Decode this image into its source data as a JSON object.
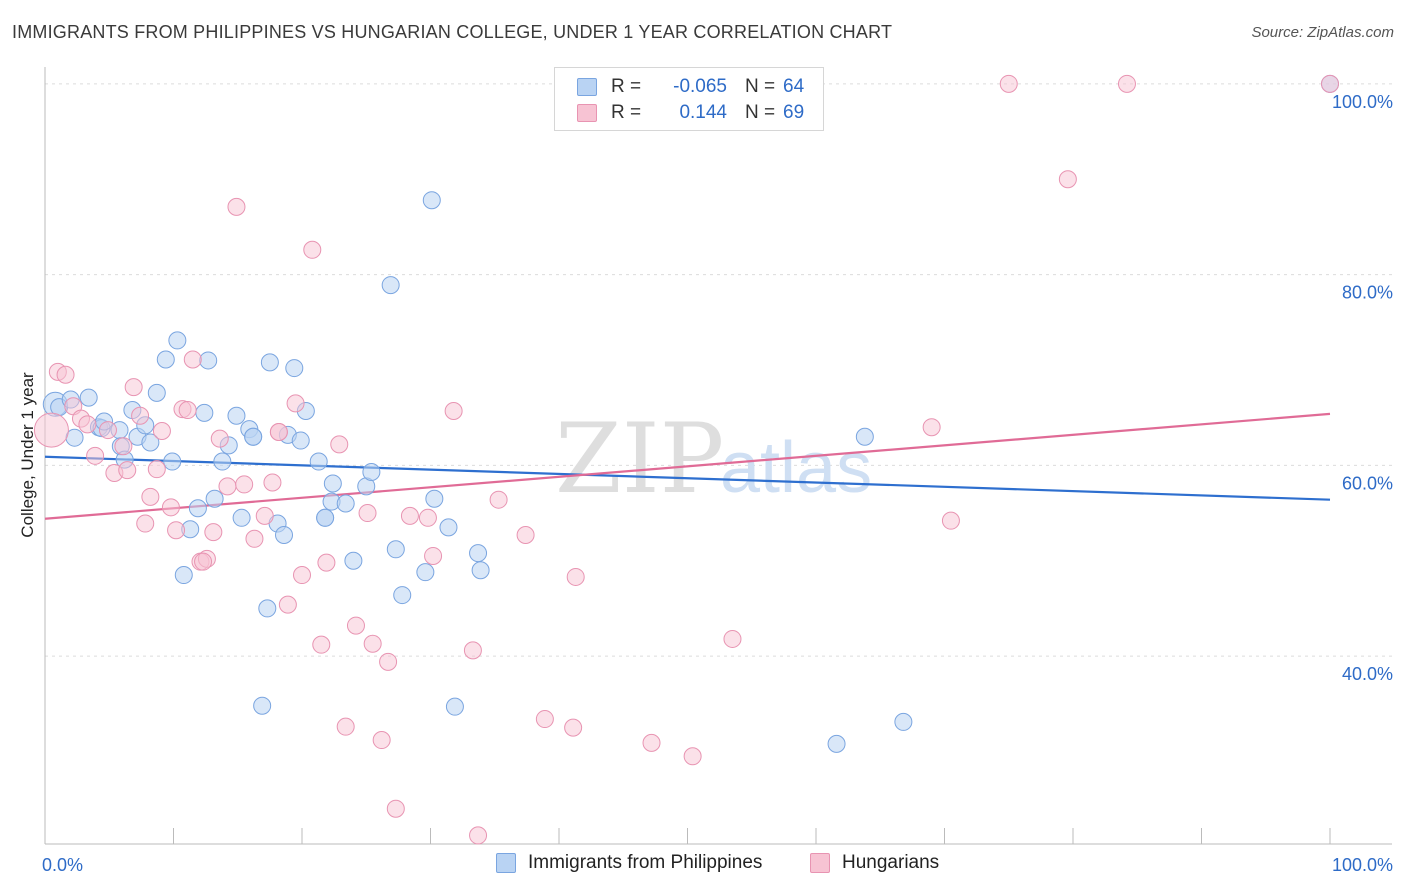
{
  "title": "IMMIGRANTS FROM PHILIPPINES VS HUNGARIAN COLLEGE, UNDER 1 YEAR CORRELATION CHART",
  "source": "Source: ZipAtlas.com",
  "watermark": {
    "zip": "ZIP",
    "atlas": "atlas"
  },
  "colors": {
    "blue": "#2e6fcf",
    "pink": "#e06b96",
    "blue_fill": "#b9d3f3",
    "pink_fill": "#f7c3d3",
    "axis_text": "#2e6bc7"
  },
  "legend": {
    "rows": [
      {
        "r_label": "R =",
        "r_value": "-0.065",
        "n_label": "N =",
        "n_value": "64"
      },
      {
        "r_label": "R =",
        "r_value": "0.144",
        "n_label": "N =",
        "n_value": "69"
      }
    ]
  },
  "chart_data": {
    "type": "scatter",
    "title": "IMMIGRANTS FROM PHILIPPINES VS HUNGARIAN COLLEGE, UNDER 1 YEAR CORRELATION CHART",
    "xlabel": "",
    "ylabel": "College, Under 1 year",
    "xlim": [
      0,
      100
    ],
    "ylim": [
      20.3,
      102.5
    ],
    "x_tick_labels": [
      {
        "value": 0,
        "label": "0.0%"
      },
      {
        "value": 100,
        "label": "100.0%"
      }
    ],
    "y_ticks": [
      {
        "value": 40,
        "label": "40.0%"
      },
      {
        "value": 60,
        "label": "60.0%"
      },
      {
        "value": 80,
        "label": "80.0%"
      },
      {
        "value": 100,
        "label": "100.0%"
      }
    ],
    "grid": true,
    "legend_position": "bottom",
    "series": [
      {
        "name": "Immigrants from Philippines",
        "color": "#2e6fcf",
        "trend": {
          "x": [
            0,
            100
          ],
          "y": [
            60.9,
            56.4
          ]
        },
        "points": [
          [
            0.8,
            66.4,
            2
          ],
          [
            1.1,
            66.1,
            1
          ],
          [
            2.0,
            66.9,
            1
          ],
          [
            2.3,
            62.9,
            1
          ],
          [
            3.4,
            67.1,
            1
          ],
          [
            4.2,
            64.0,
            1
          ],
          [
            4.4,
            63.9,
            1
          ],
          [
            4.6,
            64.6,
            1
          ],
          [
            5.8,
            63.7,
            1
          ],
          [
            5.9,
            62.0,
            1
          ],
          [
            6.2,
            60.6,
            1
          ],
          [
            6.8,
            65.8,
            1
          ],
          [
            7.2,
            63.0,
            1
          ],
          [
            7.8,
            64.2,
            1
          ],
          [
            8.2,
            62.4,
            1
          ],
          [
            8.7,
            67.6,
            1
          ],
          [
            9.4,
            71.1,
            1
          ],
          [
            9.9,
            60.4,
            1
          ],
          [
            10.3,
            73.1,
            1
          ],
          [
            10.8,
            48.5,
            1
          ],
          [
            11.3,
            53.3,
            1
          ],
          [
            11.9,
            55.5,
            1
          ],
          [
            12.4,
            65.5,
            1
          ],
          [
            12.7,
            71.0,
            1
          ],
          [
            13.2,
            56.5,
            1
          ],
          [
            13.8,
            60.4,
            1
          ],
          [
            14.3,
            62.1,
            1
          ],
          [
            14.9,
            65.2,
            1
          ],
          [
            15.3,
            54.5,
            1
          ],
          [
            15.9,
            63.8,
            1
          ],
          [
            16.2,
            63.0,
            1
          ],
          [
            16.9,
            34.8,
            1
          ],
          [
            17.3,
            45.0,
            1
          ],
          [
            17.5,
            70.8,
            1
          ],
          [
            18.1,
            53.9,
            1
          ],
          [
            18.6,
            52.7,
            1
          ],
          [
            18.9,
            63.2,
            1
          ],
          [
            19.4,
            70.2,
            1
          ],
          [
            19.9,
            62.6,
            1
          ],
          [
            20.3,
            65.7,
            1
          ],
          [
            21.3,
            60.4,
            1
          ],
          [
            21.8,
            54.5,
            1
          ],
          [
            22.3,
            56.2,
            1
          ],
          [
            22.4,
            58.1,
            1
          ],
          [
            23.4,
            56.0,
            1
          ],
          [
            24.0,
            50.0,
            1
          ],
          [
            25.0,
            57.8,
            1
          ],
          [
            25.4,
            59.3,
            1
          ],
          [
            26.9,
            78.9,
            1
          ],
          [
            27.3,
            51.2,
            1
          ],
          [
            27.8,
            46.4,
            1
          ],
          [
            29.6,
            48.8,
            1
          ],
          [
            30.1,
            87.8,
            1
          ],
          [
            30.3,
            56.5,
            1
          ],
          [
            31.4,
            53.5,
            1
          ],
          [
            31.9,
            34.7,
            1
          ],
          [
            33.9,
            49.0,
            1
          ],
          [
            33.7,
            50.8,
            1
          ],
          [
            61.6,
            30.8,
            1
          ],
          [
            63.8,
            63.0,
            1
          ],
          [
            66.8,
            33.1,
            1
          ],
          [
            100.0,
            100.0,
            1
          ],
          [
            21.8,
            54.5,
            1
          ],
          [
            16.2,
            63.0,
            1
          ]
        ]
      },
      {
        "name": "Hungarians",
        "color": "#e06b96",
        "trend": {
          "x": [
            0,
            100
          ],
          "y": [
            54.4,
            65.4
          ]
        },
        "points": [
          [
            0.5,
            63.7,
            3
          ],
          [
            1.0,
            69.8,
            1
          ],
          [
            1.6,
            69.5,
            1
          ],
          [
            2.2,
            66.2,
            1
          ],
          [
            2.8,
            64.9,
            1
          ],
          [
            3.3,
            64.3,
            1
          ],
          [
            3.9,
            61.0,
            1
          ],
          [
            4.9,
            63.7,
            1
          ],
          [
            5.4,
            59.2,
            1
          ],
          [
            6.1,
            62.0,
            1
          ],
          [
            6.4,
            59.5,
            1
          ],
          [
            6.9,
            68.2,
            1
          ],
          [
            7.4,
            65.2,
            1
          ],
          [
            7.8,
            53.9,
            1
          ],
          [
            8.2,
            56.7,
            1
          ],
          [
            8.7,
            59.6,
            1
          ],
          [
            9.1,
            63.6,
            1
          ],
          [
            9.8,
            55.6,
            1
          ],
          [
            10.2,
            53.2,
            1
          ],
          [
            10.7,
            65.9,
            1
          ],
          [
            11.1,
            65.8,
            1
          ],
          [
            11.5,
            71.1,
            1
          ],
          [
            12.1,
            49.9,
            1
          ],
          [
            12.6,
            50.2,
            1
          ],
          [
            13.1,
            53.0,
            1
          ],
          [
            13.6,
            62.8,
            1
          ],
          [
            14.2,
            57.8,
            1
          ],
          [
            14.9,
            87.1,
            1
          ],
          [
            15.5,
            58.0,
            1
          ],
          [
            16.3,
            52.3,
            1
          ],
          [
            17.1,
            54.7,
            1
          ],
          [
            17.7,
            58.2,
            1
          ],
          [
            18.2,
            63.5,
            1
          ],
          [
            18.9,
            45.4,
            1
          ],
          [
            19.5,
            66.5,
            1
          ],
          [
            20.0,
            48.5,
            1
          ],
          [
            20.8,
            82.6,
            1
          ],
          [
            21.5,
            41.2,
            1
          ],
          [
            21.9,
            49.8,
            1
          ],
          [
            22.9,
            62.2,
            1
          ],
          [
            23.4,
            32.6,
            1
          ],
          [
            24.2,
            43.2,
            1
          ],
          [
            25.1,
            55.0,
            1
          ],
          [
            25.5,
            41.3,
            1
          ],
          [
            26.2,
            31.2,
            1
          ],
          [
            26.7,
            39.4,
            1
          ],
          [
            27.3,
            24.0,
            1
          ],
          [
            28.4,
            54.7,
            1
          ],
          [
            29.8,
            54.5,
            1
          ],
          [
            30.2,
            50.5,
            1
          ],
          [
            31.8,
            65.7,
            1
          ],
          [
            33.3,
            40.6,
            1
          ],
          [
            33.7,
            21.2,
            1
          ],
          [
            35.3,
            56.4,
            1
          ],
          [
            37.4,
            52.7,
            1
          ],
          [
            38.9,
            33.4,
            1
          ],
          [
            41.1,
            32.5,
            1
          ],
          [
            41.3,
            48.3,
            1
          ],
          [
            47.2,
            30.9,
            1
          ],
          [
            50.4,
            29.5,
            1
          ],
          [
            53.5,
            41.8,
            1
          ],
          [
            69.0,
            64.0,
            1
          ],
          [
            70.5,
            54.2,
            1
          ],
          [
            75.0,
            100.0,
            1
          ],
          [
            79.6,
            90.0,
            1
          ],
          [
            84.2,
            100.0,
            1
          ],
          [
            100.0,
            100.0,
            1
          ],
          [
            12.3,
            49.9,
            1
          ],
          [
            18.2,
            63.5,
            1
          ]
        ]
      }
    ]
  }
}
